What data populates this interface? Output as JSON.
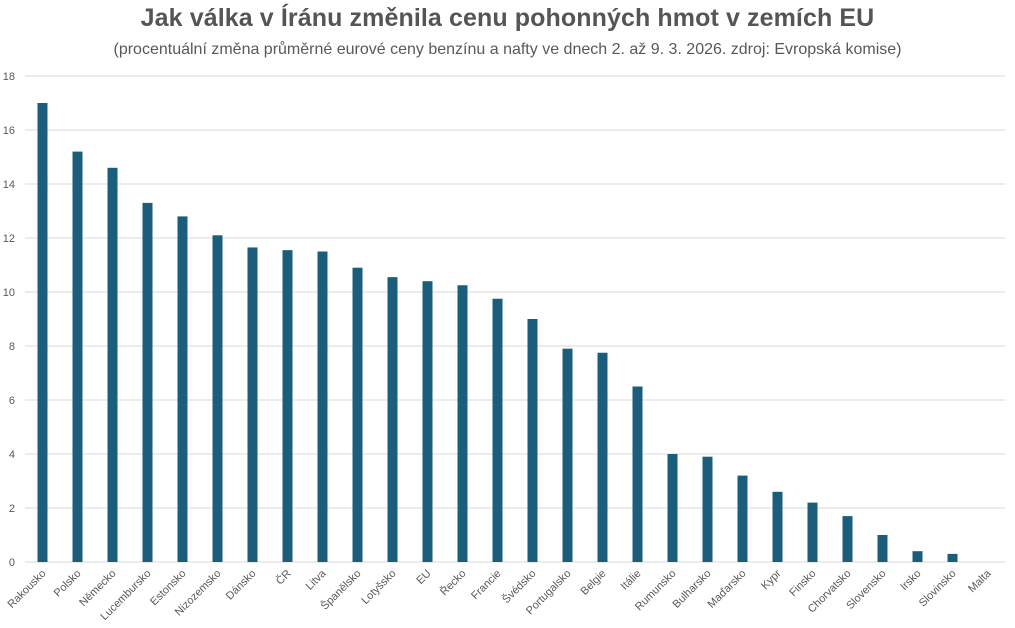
{
  "chart_data": {
    "type": "bar",
    "title": "Jak válka v Íránu změnila cenu pohonných hmot v zemích EU",
    "subtitle": "(procentuální změna průměrné eurové ceny benzínu a nafty ve dnech 2. až 9. 3. 2026. zdroj: Evropská komise)",
    "xlabel": "",
    "ylabel": "",
    "ylim": [
      0,
      18
    ],
    "yticks": [
      0,
      2,
      4,
      6,
      8,
      10,
      12,
      14,
      16,
      18
    ],
    "grid": true,
    "bar_color": "#1b5e7b",
    "categories": [
      "Rakousko",
      "Polsko",
      "Německo",
      "Lucembursko",
      "Estonsko",
      "Nizozemsko",
      "Dánsko",
      "ČR",
      "Litva",
      "Španělsko",
      "Lotyšsko",
      "EU",
      "Řecko",
      "Francie",
      "Švédsko",
      "Portugalsko",
      "Belgie",
      "Itálie",
      "Rumunsko",
      "Bulharsko",
      "Maďarsko",
      "Kypr",
      "Finsko",
      "Chorvatsko",
      "Slovensko",
      "Irsko",
      "Slovinsko",
      "Malta"
    ],
    "values": [
      17.0,
      15.2,
      14.6,
      13.3,
      12.8,
      12.1,
      11.65,
      11.55,
      11.5,
      10.9,
      10.55,
      10.4,
      10.25,
      9.75,
      9.0,
      7.9,
      7.75,
      6.5,
      4.0,
      3.9,
      3.2,
      2.6,
      2.2,
      1.7,
      1.0,
      0.4,
      0.3,
      0.0
    ]
  }
}
